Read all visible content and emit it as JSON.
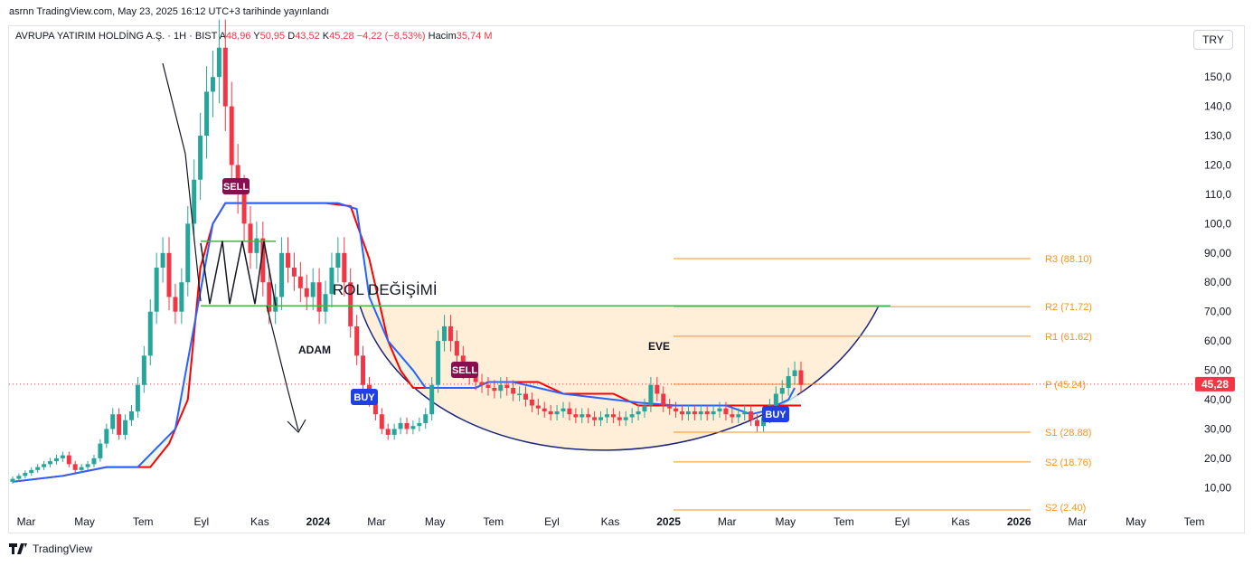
{
  "header": {
    "published": "asrnn TradingView.com, May 23, 2025 16:12 UTC+3 tarihinde yayınlandı"
  },
  "symbol": {
    "name": "AVRUPA YATIRIM HOLDİNG A.Ş. · 1H · BIST",
    "open_label": "A",
    "open": "48,96",
    "high_label": "Y",
    "high": "50,95",
    "low_label": "D",
    "low": "43,52",
    "close_label": "K",
    "close": "45,28",
    "change": "−4,22 (−8,53%)",
    "volume_label": "Hacim",
    "volume": "35,74 M"
  },
  "currency": "TRY",
  "footer": {
    "brand": "TradingView"
  },
  "colors": {
    "up": "#26a69a",
    "down": "#f23645",
    "fast_line": "#2962ff",
    "slow_line": "#ff0000",
    "pivot": "#f7931a",
    "neckline": "#4caf50",
    "arc": "#1a237e"
  },
  "chart_data": {
    "type": "candlestick",
    "y_ticks": [
      10,
      20,
      30,
      40,
      50,
      60,
      70,
      80,
      90,
      100,
      110,
      120,
      130,
      140,
      150
    ],
    "y_tick_labels": [
      "10,00",
      "20,00",
      "30,00",
      "40,00",
      "50,00",
      "60,00",
      "70,00",
      "80,00",
      "90,00",
      "100,0",
      "110,0",
      "120,0",
      "130,0",
      "140,0",
      "150,0"
    ],
    "ylim": [
      3,
      159
    ],
    "x_ticks": [
      "Mar",
      "May",
      "Tem",
      "Eyl",
      "Kas",
      "2024",
      "Mar",
      "May",
      "Tem",
      "Eyl",
      "Kas",
      "2025",
      "Mar",
      "May",
      "Tem",
      "Eyl",
      "Kas",
      "2026",
      "Mar",
      "May",
      "Tem"
    ],
    "x_bold": [
      "2024",
      "2025",
      "2026"
    ],
    "last_price": "45,28",
    "last_price_value": 45.28,
    "closes": [
      13,
      14,
      15,
      16,
      17,
      18,
      19,
      20,
      21,
      18,
      16,
      17,
      18,
      20,
      25,
      30,
      35,
      28,
      33,
      36,
      45,
      55,
      70,
      85,
      90,
      75,
      70,
      80,
      100,
      115,
      130,
      145,
      150,
      160,
      140,
      120,
      110,
      100,
      90,
      95,
      80,
      70,
      75,
      90,
      85,
      82,
      78,
      75,
      80,
      70,
      76,
      85,
      90,
      80,
      65,
      55,
      45,
      40,
      35,
      30,
      28,
      30,
      32,
      30,
      31,
      32,
      35,
      45,
      60,
      65,
      60,
      55,
      50,
      48,
      46,
      45,
      44,
      43,
      45,
      44,
      42,
      42,
      40,
      38,
      37,
      36,
      35,
      36,
      37,
      35,
      34,
      35,
      34,
      33,
      34,
      35,
      34,
      33,
      34,
      35,
      36,
      38,
      45,
      42,
      38,
      37,
      36,
      35,
      36,
      35,
      36,
      35,
      36,
      37,
      35,
      34,
      35,
      36,
      33,
      31,
      34,
      38,
      42,
      44,
      48,
      50,
      45
    ],
    "pivots": [
      {
        "label": "R3 (88.10)",
        "value": 88.1
      },
      {
        "label": "R2 (71.72)",
        "value": 71.72
      },
      {
        "label": "R1 (61.62)",
        "value": 61.62
      },
      {
        "label": "P (45.24)",
        "value": 45.24
      },
      {
        "label": "S1 (28.88)",
        "value": 28.88
      },
      {
        "label": "S2 (18.76)",
        "value": 18.76
      },
      {
        "label": "S2 (2.40)",
        "value": 2.4
      }
    ],
    "fast_line": [
      [
        0,
        12
      ],
      [
        8,
        14
      ],
      [
        15,
        17
      ],
      [
        20,
        17
      ],
      [
        26,
        30
      ],
      [
        32,
        100
      ],
      [
        34,
        107
      ],
      [
        42,
        107
      ],
      [
        48,
        107
      ],
      [
        52,
        107
      ],
      [
        55,
        105
      ],
      [
        57,
        75
      ],
      [
        60,
        60
      ],
      [
        62,
        55
      ],
      [
        64,
        50
      ],
      [
        66,
        44
      ],
      [
        70,
        44
      ],
      [
        74,
        44
      ],
      [
        76,
        46
      ],
      [
        80,
        46
      ],
      [
        84,
        44
      ],
      [
        88,
        42
      ],
      [
        92,
        41
      ],
      [
        96,
        40
      ],
      [
        100,
        39
      ],
      [
        106,
        38
      ],
      [
        114,
        38
      ],
      [
        118,
        35
      ],
      [
        120,
        36
      ],
      [
        122,
        38
      ],
      [
        124,
        40
      ],
      [
        125,
        44
      ]
    ],
    "slow_line": [
      [
        0,
        12
      ],
      [
        8,
        14
      ],
      [
        15,
        17
      ],
      [
        22,
        17
      ],
      [
        25,
        25
      ],
      [
        28,
        40
      ],
      [
        30,
        85
      ],
      [
        32,
        100
      ],
      [
        34,
        107
      ],
      [
        42,
        107
      ],
      [
        50,
        107
      ],
      [
        54,
        106
      ],
      [
        57,
        88
      ],
      [
        60,
        60
      ],
      [
        62,
        50
      ],
      [
        64,
        44
      ],
      [
        70,
        44
      ],
      [
        74,
        44
      ],
      [
        76,
        46
      ],
      [
        80,
        46
      ],
      [
        84,
        46
      ],
      [
        88,
        42
      ],
      [
        92,
        42
      ],
      [
        96,
        42
      ],
      [
        100,
        38
      ],
      [
        106,
        38
      ],
      [
        114,
        38
      ],
      [
        120,
        38
      ],
      [
        124,
        38
      ],
      [
        126,
        38
      ]
    ],
    "neckline": {
      "label": "ROL DEĞİŞİMİ",
      "value": 72
    },
    "annotations": [
      {
        "text": "ADAM"
      },
      {
        "text": "EVE"
      }
    ],
    "signals": [
      {
        "text": "SELL",
        "type": "sell"
      },
      {
        "text": "BUY",
        "type": "buy"
      },
      {
        "text": "SELL",
        "type": "sell"
      },
      {
        "text": "BUY",
        "type": "buy"
      }
    ],
    "head_shoulders_level": 94,
    "cup_bottom": 21
  }
}
